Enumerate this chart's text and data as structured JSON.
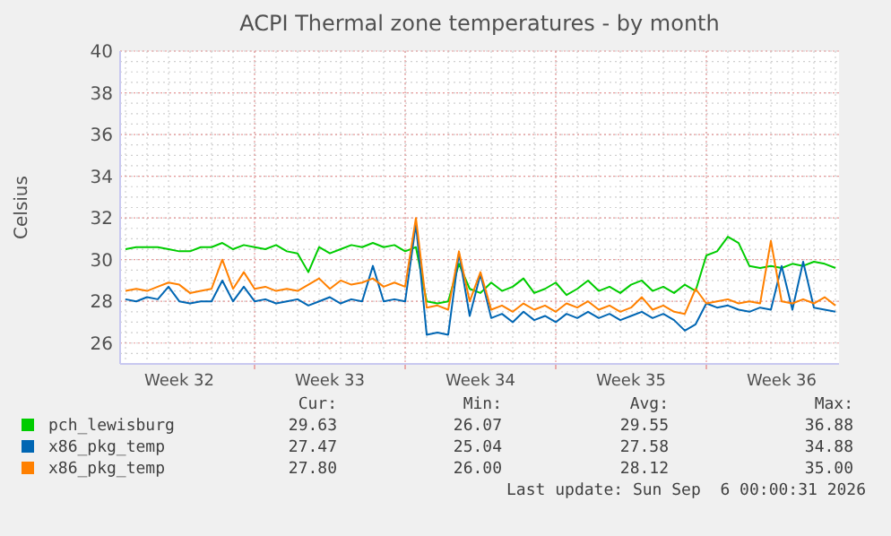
{
  "chart_data": {
    "type": "line",
    "title": "ACPI Thermal zone temperatures - by month",
    "ylabel": "Celsius",
    "categories": [
      null,
      null,
      null,
      null,
      null,
      "Week 32",
      null,
      null,
      null,
      null,
      null,
      null,
      null,
      null,
      null,
      null,
      null,
      null,
      null,
      "Week 33",
      null,
      null,
      null,
      null,
      null,
      null,
      null,
      null,
      null,
      null,
      null,
      null,
      null,
      "Week 34",
      null,
      null,
      null,
      null,
      null,
      null,
      null,
      null,
      null,
      null,
      null,
      null,
      null,
      "Week 35",
      null,
      null,
      null,
      null,
      null,
      null,
      null,
      null,
      null,
      null,
      null,
      null,
      null,
      "Week 36",
      null,
      null,
      null,
      null,
      null
    ],
    "ylim": [
      25,
      40
    ],
    "yticks": [
      26,
      28,
      30,
      32,
      34,
      36,
      38,
      40
    ],
    "grid": true,
    "legend": "bottom",
    "marker": "none",
    "line_style": "solid",
    "annotations": [
      "Cur:",
      "Min:",
      "Avg:",
      "Max:",
      "29.63",
      "26.07",
      "29.55",
      "36.88",
      "27.47",
      "25.04",
      "27.58",
      "34.88",
      "27.80",
      "26.00",
      "28.12",
      "35.00",
      "Last update: Sun Sep  6 00:00:31 2026"
    ],
    "series": [
      {
        "name": "pch_lewisburg",
        "color": "#00cc00",
        "values": [
          30.5,
          30.6,
          30.6,
          30.6,
          30.5,
          30.4,
          30.4,
          30.6,
          30.6,
          30.8,
          30.5,
          30.7,
          30.6,
          30.5,
          30.7,
          30.4,
          30.3,
          29.4,
          30.6,
          30.3,
          30.5,
          30.7,
          30.6,
          30.8,
          30.6,
          30.7,
          30.4,
          30.6,
          28.0,
          27.9,
          28.0,
          29.8,
          28.6,
          28.4,
          28.9,
          28.5,
          28.7,
          29.1,
          28.4,
          28.6,
          28.9,
          28.3,
          28.6,
          29.0,
          28.5,
          28.7,
          28.4,
          28.8,
          29.0,
          28.5,
          28.7,
          28.4,
          28.8,
          28.5,
          30.2,
          30.4,
          31.1,
          30.8,
          29.7,
          29.6,
          29.7,
          29.6,
          29.8,
          29.7,
          29.9,
          29.8,
          29.6
        ]
      },
      {
        "name": "x86_pkg_temp",
        "color": "#0066b3",
        "values": [
          28.1,
          28.0,
          28.2,
          28.1,
          28.7,
          28.0,
          27.9,
          28.0,
          28.0,
          29.0,
          28.0,
          28.7,
          28.0,
          28.1,
          27.9,
          28.0,
          28.1,
          27.8,
          28.0,
          28.2,
          27.9,
          28.1,
          28.0,
          29.7,
          28.0,
          28.1,
          28.0,
          31.7,
          26.4,
          26.5,
          26.4,
          30.3,
          27.3,
          29.3,
          27.2,
          27.4,
          27.0,
          27.5,
          27.1,
          27.3,
          27.0,
          27.4,
          27.2,
          27.5,
          27.2,
          27.4,
          27.1,
          27.3,
          27.5,
          27.2,
          27.4,
          27.1,
          26.6,
          26.9,
          27.9,
          27.7,
          27.8,
          27.6,
          27.5,
          27.7,
          27.6,
          29.7,
          27.6,
          29.9,
          27.7,
          27.6,
          27.5
        ]
      },
      {
        "name": "x86_pkg_temp",
        "color": "#ff8000",
        "values": [
          28.5,
          28.6,
          28.5,
          28.7,
          28.9,
          28.8,
          28.4,
          28.5,
          28.6,
          30.0,
          28.6,
          29.4,
          28.6,
          28.7,
          28.5,
          28.6,
          28.5,
          28.8,
          29.1,
          28.6,
          29.0,
          28.8,
          28.9,
          29.1,
          28.7,
          28.9,
          28.7,
          32.0,
          27.7,
          27.8,
          27.6,
          30.4,
          28.0,
          29.4,
          27.6,
          27.8,
          27.5,
          27.9,
          27.6,
          27.8,
          27.5,
          27.9,
          27.7,
          28.0,
          27.6,
          27.8,
          27.5,
          27.7,
          28.2,
          27.6,
          27.8,
          27.5,
          27.4,
          28.6,
          27.9,
          28.0,
          28.1,
          27.9,
          28.0,
          27.9,
          30.9,
          28.0,
          27.9,
          28.1,
          27.9,
          28.2,
          27.8
        ]
      }
    ]
  }
}
